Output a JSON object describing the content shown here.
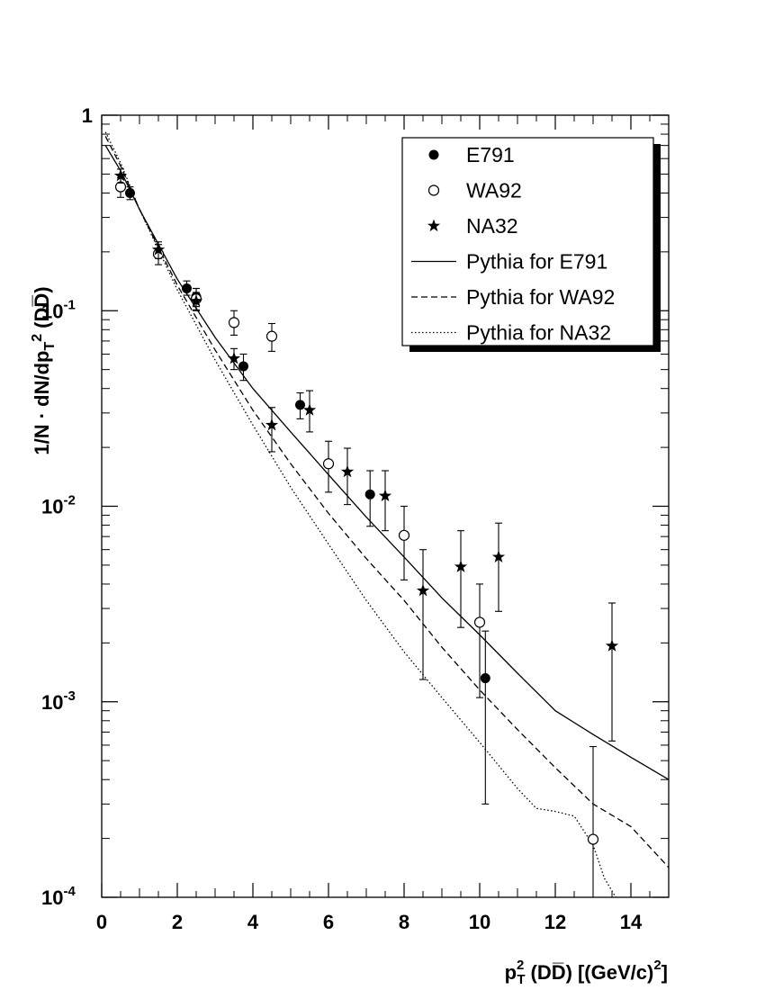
{
  "chart_data": {
    "type": "scatter",
    "title": "",
    "xlabel": {
      "main": "p",
      "sup": "2",
      "sub": "T",
      "paren": "(DD̅)",
      "unit": "[(GeV/c)",
      "unit_sup": "2",
      "unit_end": "]"
    },
    "ylabel": {
      "prefix": "1/N",
      "mid": " · dN/dp",
      "sub": "T",
      "sup": "2",
      "suffix": "(DD̅)"
    },
    "xlim": [
      0,
      15
    ],
    "ylim": [
      0.0001,
      1
    ],
    "yscale": "log",
    "x_ticks": [
      "0",
      "2",
      "4",
      "6",
      "8",
      "10",
      "12",
      "14"
    ],
    "y_ticks": [
      {
        "value": 1,
        "label": "1",
        "exp": ""
      },
      {
        "value": 0.1,
        "label": "10",
        "exp": "-1"
      },
      {
        "value": 0.01,
        "label": "10",
        "exp": "-2"
      },
      {
        "value": 0.001,
        "label": "10",
        "exp": "-3"
      },
      {
        "value": 0.0001,
        "label": "10",
        "exp": "-4"
      }
    ],
    "grid": false,
    "legend_position": "top-right",
    "series": [
      {
        "name": "E791",
        "marker": "filled-circle",
        "points": [
          {
            "x": 0.75,
            "y": 0.4,
            "ylo": 0.37,
            "yhi": 0.43
          },
          {
            "x": 2.25,
            "y": 0.13,
            "ylo": 0.12,
            "yhi": 0.142
          },
          {
            "x": 2.5,
            "y": 0.118,
            "ylo": 0.105,
            "yhi": 0.13
          },
          {
            "x": 3.75,
            "y": 0.052,
            "ylo": 0.044,
            "yhi": 0.06
          },
          {
            "x": 5.25,
            "y": 0.033,
            "ylo": 0.028,
            "yhi": 0.038
          },
          {
            "x": 7.1,
            "y": 0.0115,
            "ylo": 0.0079,
            "yhi": 0.0152
          },
          {
            "x": 10.15,
            "y": 0.00132,
            "ylo": 0.0003,
            "yhi": 0.0023
          }
        ]
      },
      {
        "name": "WA92",
        "marker": "open-circle",
        "points": [
          {
            "x": 0.5,
            "y": 0.43,
            "ylo": 0.38,
            "yhi": 0.48
          },
          {
            "x": 1.5,
            "y": 0.195,
            "ylo": 0.172,
            "yhi": 0.218
          },
          {
            "x": 2.5,
            "y": 0.115,
            "ylo": 0.101,
            "yhi": 0.13
          },
          {
            "x": 3.5,
            "y": 0.087,
            "ylo": 0.075,
            "yhi": 0.1
          },
          {
            "x": 4.5,
            "y": 0.074,
            "ylo": 0.062,
            "yhi": 0.086
          },
          {
            "x": 6.0,
            "y": 0.0165,
            "ylo": 0.0118,
            "yhi": 0.0215
          },
          {
            "x": 8.0,
            "y": 0.0071,
            "ylo": 0.0042,
            "yhi": 0.01
          },
          {
            "x": 10.0,
            "y": 0.00255,
            "ylo": 0.00105,
            "yhi": 0.004
          },
          {
            "x": 13.0,
            "y": 0.000198,
            "ylo": 0.0001,
            "yhi": 0.00059
          }
        ]
      },
      {
        "name": "NA32",
        "marker": "star",
        "points": [
          {
            "x": 0.5,
            "y": 0.49,
            "ylo": 0.45,
            "yhi": 0.53
          },
          {
            "x": 1.5,
            "y": 0.205,
            "ylo": 0.185,
            "yhi": 0.225
          },
          {
            "x": 2.5,
            "y": 0.112,
            "ylo": 0.1,
            "yhi": 0.124
          },
          {
            "x": 3.5,
            "y": 0.057,
            "ylo": 0.05,
            "yhi": 0.064
          },
          {
            "x": 4.5,
            "y": 0.026,
            "ylo": 0.019,
            "yhi": 0.032
          },
          {
            "x": 5.5,
            "y": 0.031,
            "ylo": 0.024,
            "yhi": 0.039
          },
          {
            "x": 6.5,
            "y": 0.015,
            "ylo": 0.0102,
            "yhi": 0.0198
          },
          {
            "x": 7.5,
            "y": 0.0113,
            "ylo": 0.0075,
            "yhi": 0.0152
          },
          {
            "x": 8.5,
            "y": 0.0037,
            "ylo": 0.0013,
            "yhi": 0.006
          },
          {
            "x": 9.5,
            "y": 0.0049,
            "ylo": 0.0024,
            "yhi": 0.0075
          },
          {
            "x": 10.5,
            "y": 0.0055,
            "ylo": 0.0029,
            "yhi": 0.0082
          },
          {
            "x": 13.5,
            "y": 0.00193,
            "ylo": 0.00063,
            "yhi": 0.0032
          }
        ]
      },
      {
        "name": "Pythia for E791",
        "line_style": "solid",
        "curve": [
          [
            0.1,
            0.7
          ],
          [
            0.5,
            0.52
          ],
          [
            1.0,
            0.33
          ],
          [
            2.0,
            0.145
          ],
          [
            3.0,
            0.073
          ],
          [
            4.0,
            0.04
          ],
          [
            5.0,
            0.024
          ],
          [
            6.0,
            0.0145
          ],
          [
            7.0,
            0.0088
          ],
          [
            8.0,
            0.0055
          ],
          [
            9.0,
            0.0034
          ],
          [
            10.0,
            0.0022
          ],
          [
            11.0,
            0.0014
          ],
          [
            12.0,
            0.0009
          ],
          [
            13.0,
            0.00068
          ],
          [
            14.0,
            0.00052
          ],
          [
            15.0,
            0.0004
          ]
        ]
      },
      {
        "name": "Pythia for WA92",
        "line_style": "dashed",
        "curve": [
          [
            0.1,
            0.78
          ],
          [
            0.5,
            0.55
          ],
          [
            1.0,
            0.33
          ],
          [
            2.0,
            0.135
          ],
          [
            3.0,
            0.063
          ],
          [
            4.0,
            0.031
          ],
          [
            5.0,
            0.0165
          ],
          [
            6.0,
            0.0092
          ],
          [
            7.0,
            0.0054
          ],
          [
            8.0,
            0.0033
          ],
          [
            9.0,
            0.0019
          ],
          [
            10.0,
            0.00115
          ],
          [
            11.0,
            0.00072
          ],
          [
            12.0,
            0.00046
          ],
          [
            13.0,
            0.0003
          ],
          [
            14.0,
            0.00023
          ],
          [
            15.0,
            0.000142
          ]
        ]
      },
      {
        "name": "Pythia for NA32",
        "line_style": "dotted",
        "curve": [
          [
            0.1,
            0.82
          ],
          [
            0.5,
            0.57
          ],
          [
            1.0,
            0.33
          ],
          [
            2.0,
            0.128
          ],
          [
            3.0,
            0.056
          ],
          [
            4.0,
            0.026
          ],
          [
            5.0,
            0.0125
          ],
          [
            6.0,
            0.0064
          ],
          [
            7.0,
            0.0033
          ],
          [
            8.0,
            0.0018
          ],
          [
            9.0,
            0.00105
          ],
          [
            10.0,
            0.00062
          ],
          [
            11.0,
            0.00036
          ],
          [
            11.5,
            0.000285
          ],
          [
            12.0,
            0.000275
          ],
          [
            12.5,
            0.00026
          ],
          [
            13.0,
            0.000185
          ],
          [
            13.3,
            0.000125
          ],
          [
            13.6,
            0.0001
          ]
        ]
      }
    ]
  }
}
